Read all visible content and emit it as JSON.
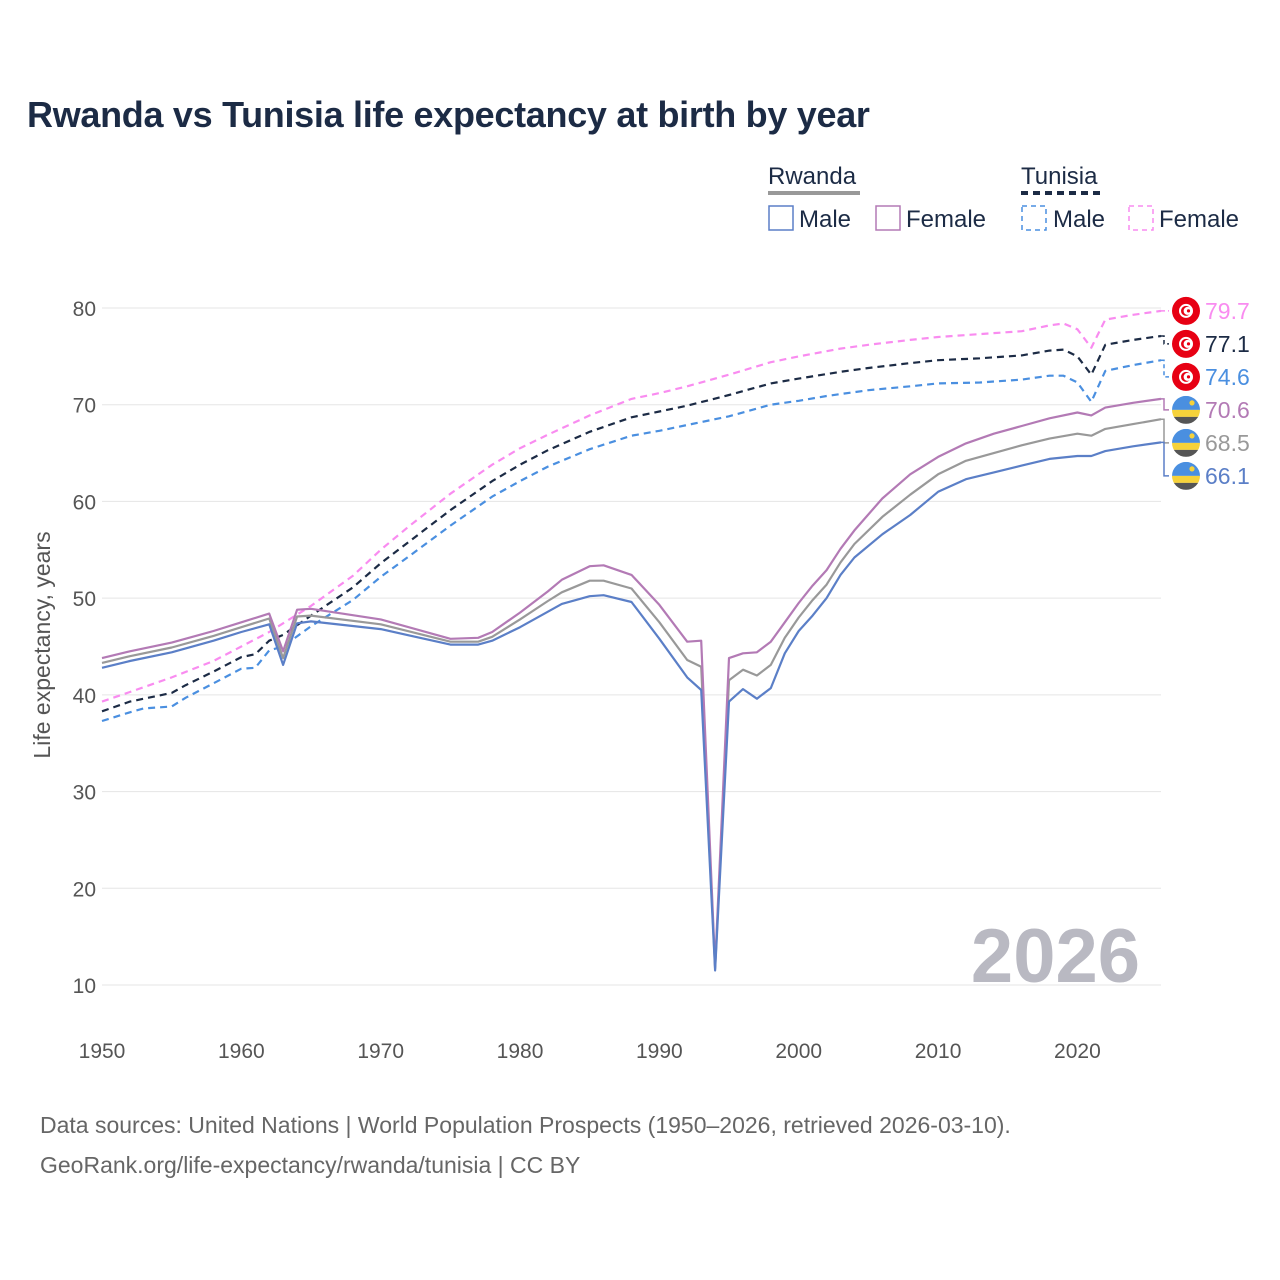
{
  "colors": {
    "rwanda_male": "#5b7fc7",
    "rwanda_female": "#b37ab5",
    "rwanda_total": "#999999",
    "tunisia_male": "#4a8fe0",
    "tunisia_female": "#f98cf0",
    "tunisia_total": "#1c2b45",
    "grid": "#e5e5e5",
    "year_watermark": "#b9b9c2"
  },
  "legend": {
    "groups": [
      {
        "name": "Rwanda",
        "male_label": "Male",
        "female_label": "Female"
      },
      {
        "name": "Tunisia",
        "male_label": "Male",
        "female_label": "Female"
      }
    ]
  },
  "year_watermark": "2026",
  "footer": {
    "line1": "Data sources: United Nations | World Population Prospects (1950–2026, retrieved 2026-03-10).",
    "line2": "GeoRank.org/life-expectancy/rwanda/tunisia | CC BY"
  },
  "chart_data": {
    "type": "line",
    "title": "Rwanda vs Tunisia life expectancy at birth by year",
    "xlabel": "",
    "ylabel": "Life expectancy, years",
    "xlim": [
      1950,
      2026
    ],
    "ylim": [
      10,
      80
    ],
    "x_ticks": [
      1950,
      1960,
      1970,
      1980,
      1990,
      2000,
      2010,
      2020
    ],
    "y_ticks": [
      10,
      20,
      30,
      40,
      50,
      60,
      70,
      80
    ],
    "grid": true,
    "series": [
      {
        "key": "rwanda_male",
        "name": "Rwanda Male",
        "country": "Rwanda",
        "dash": false,
        "end_label": "66.1",
        "flag": "rwanda",
        "points": [
          [
            1950,
            42.8
          ],
          [
            1952,
            43.5
          ],
          [
            1955,
            44.4
          ],
          [
            1958,
            45.6
          ],
          [
            1960,
            46.5
          ],
          [
            1962,
            47.3
          ],
          [
            1963,
            43.1
          ],
          [
            1964,
            47.4
          ],
          [
            1965,
            47.6
          ],
          [
            1970,
            46.8
          ],
          [
            1975,
            45.2
          ],
          [
            1977,
            45.2
          ],
          [
            1978,
            45.6
          ],
          [
            1980,
            47.0
          ],
          [
            1982,
            48.6
          ],
          [
            1983,
            49.4
          ],
          [
            1985,
            50.2
          ],
          [
            1986,
            50.3
          ],
          [
            1988,
            49.6
          ],
          [
            1990,
            45.8
          ],
          [
            1992,
            41.8
          ],
          [
            1993,
            40.5
          ],
          [
            1994,
            11.5
          ],
          [
            1995,
            39.3
          ],
          [
            1996,
            40.6
          ],
          [
            1997,
            39.6
          ],
          [
            1998,
            40.7
          ],
          [
            1999,
            44.3
          ],
          [
            2000,
            46.6
          ],
          [
            2001,
            48.2
          ],
          [
            2002,
            50.0
          ],
          [
            2003,
            52.4
          ],
          [
            2004,
            54.2
          ],
          [
            2006,
            56.6
          ],
          [
            2008,
            58.6
          ],
          [
            2010,
            61.0
          ],
          [
            2012,
            62.3
          ],
          [
            2014,
            63.0
          ],
          [
            2016,
            63.7
          ],
          [
            2018,
            64.4
          ],
          [
            2020,
            64.7
          ],
          [
            2021,
            64.7
          ],
          [
            2022,
            65.2
          ],
          [
            2024,
            65.7
          ],
          [
            2026,
            66.1
          ]
        ]
      },
      {
        "key": "rwanda_female",
        "name": "Rwanda Female",
        "country": "Rwanda",
        "dash": false,
        "end_label": "70.6",
        "flag": "rwanda",
        "points": [
          [
            1950,
            43.8
          ],
          [
            1952,
            44.5
          ],
          [
            1955,
            45.4
          ],
          [
            1958,
            46.6
          ],
          [
            1960,
            47.5
          ],
          [
            1962,
            48.4
          ],
          [
            1963,
            44.5
          ],
          [
            1964,
            48.8
          ],
          [
            1965,
            48.9
          ],
          [
            1970,
            47.8
          ],
          [
            1975,
            45.8
          ],
          [
            1977,
            45.9
          ],
          [
            1978,
            46.5
          ],
          [
            1980,
            48.5
          ],
          [
            1982,
            50.7
          ],
          [
            1983,
            51.9
          ],
          [
            1985,
            53.3
          ],
          [
            1986,
            53.4
          ],
          [
            1988,
            52.4
          ],
          [
            1990,
            49.3
          ],
          [
            1992,
            45.5
          ],
          [
            1993,
            45.6
          ],
          [
            1994,
            11.9
          ],
          [
            1995,
            43.8
          ],
          [
            1996,
            44.3
          ],
          [
            1997,
            44.4
          ],
          [
            1998,
            45.5
          ],
          [
            1999,
            47.5
          ],
          [
            2000,
            49.5
          ],
          [
            2001,
            51.3
          ],
          [
            2002,
            52.9
          ],
          [
            2003,
            55.1
          ],
          [
            2004,
            57.0
          ],
          [
            2006,
            60.3
          ],
          [
            2008,
            62.8
          ],
          [
            2010,
            64.6
          ],
          [
            2012,
            66.0
          ],
          [
            2014,
            67.0
          ],
          [
            2016,
            67.8
          ],
          [
            2018,
            68.6
          ],
          [
            2020,
            69.2
          ],
          [
            2021,
            68.9
          ],
          [
            2022,
            69.7
          ],
          [
            2024,
            70.2
          ],
          [
            2026,
            70.6
          ]
        ]
      },
      {
        "key": "rwanda_total",
        "name": "Rwanda",
        "country": "Rwanda",
        "dash": false,
        "end_label": "68.5",
        "flag": "rwanda",
        "points": [
          [
            1950,
            43.3
          ],
          [
            1952,
            44.0
          ],
          [
            1955,
            44.9
          ],
          [
            1958,
            46.1
          ],
          [
            1960,
            47.0
          ],
          [
            1962,
            47.9
          ],
          [
            1963,
            43.8
          ],
          [
            1964,
            48.1
          ],
          [
            1965,
            48.2
          ],
          [
            1970,
            47.3
          ],
          [
            1975,
            45.5
          ],
          [
            1977,
            45.5
          ],
          [
            1978,
            46.0
          ],
          [
            1980,
            47.8
          ],
          [
            1982,
            49.7
          ],
          [
            1983,
            50.6
          ],
          [
            1985,
            51.8
          ],
          [
            1986,
            51.8
          ],
          [
            1988,
            51.0
          ],
          [
            1990,
            47.5
          ],
          [
            1992,
            43.6
          ],
          [
            1993,
            42.9
          ],
          [
            1994,
            11.7
          ],
          [
            1995,
            41.5
          ],
          [
            1996,
            42.6
          ],
          [
            1997,
            42.0
          ],
          [
            1998,
            43.1
          ],
          [
            1999,
            45.9
          ],
          [
            2000,
            48.0
          ],
          [
            2001,
            49.8
          ],
          [
            2002,
            51.4
          ],
          [
            2003,
            53.7
          ],
          [
            2004,
            55.6
          ],
          [
            2006,
            58.4
          ],
          [
            2008,
            60.7
          ],
          [
            2010,
            62.8
          ],
          [
            2012,
            64.2
          ],
          [
            2014,
            65.0
          ],
          [
            2016,
            65.8
          ],
          [
            2018,
            66.5
          ],
          [
            2020,
            67.0
          ],
          [
            2021,
            66.8
          ],
          [
            2022,
            67.5
          ],
          [
            2024,
            68.0
          ],
          [
            2026,
            68.5
          ]
        ]
      },
      {
        "key": "tunisia_male",
        "name": "Tunisia Male",
        "country": "Tunisia",
        "dash": true,
        "end_label": "74.6",
        "flag": "tunisia",
        "points": [
          [
            1950,
            37.3
          ],
          [
            1952,
            38.2
          ],
          [
            1953,
            38.6
          ],
          [
            1955,
            38.8
          ],
          [
            1956,
            39.7
          ],
          [
            1958,
            41.2
          ],
          [
            1960,
            42.7
          ],
          [
            1961,
            42.8
          ],
          [
            1962,
            44.6
          ],
          [
            1963,
            45.0
          ],
          [
            1965,
            47.1
          ],
          [
            1968,
            49.8
          ],
          [
            1970,
            52.2
          ],
          [
            1972,
            54.3
          ],
          [
            1975,
            57.5
          ],
          [
            1978,
            60.5
          ],
          [
            1980,
            62.1
          ],
          [
            1982,
            63.6
          ],
          [
            1985,
            65.4
          ],
          [
            1988,
            66.8
          ],
          [
            1990,
            67.3
          ],
          [
            1992,
            67.9
          ],
          [
            1995,
            68.8
          ],
          [
            1998,
            70.0
          ],
          [
            2000,
            70.4
          ],
          [
            2002,
            70.9
          ],
          [
            2005,
            71.5
          ],
          [
            2008,
            71.9
          ],
          [
            2010,
            72.2
          ],
          [
            2013,
            72.3
          ],
          [
            2016,
            72.6
          ],
          [
            2018,
            73.0
          ],
          [
            2019,
            73.0
          ],
          [
            2020,
            72.3
          ],
          [
            2021,
            70.3
          ],
          [
            2022,
            73.5
          ],
          [
            2024,
            74.1
          ],
          [
            2026,
            74.6
          ]
        ]
      },
      {
        "key": "tunisia_female",
        "name": "Tunisia Female",
        "country": "Tunisia",
        "dash": true,
        "end_label": "79.7",
        "flag": "tunisia",
        "points": [
          [
            1950,
            39.3
          ],
          [
            1952,
            40.3
          ],
          [
            1955,
            41.8
          ],
          [
            1958,
            43.5
          ],
          [
            1960,
            45.0
          ],
          [
            1962,
            46.5
          ],
          [
            1963,
            47.4
          ],
          [
            1965,
            49.2
          ],
          [
            1968,
            52.3
          ],
          [
            1970,
            55.0
          ],
          [
            1972,
            57.4
          ],
          [
            1975,
            60.8
          ],
          [
            1978,
            63.8
          ],
          [
            1980,
            65.5
          ],
          [
            1982,
            66.9
          ],
          [
            1985,
            68.9
          ],
          [
            1988,
            70.6
          ],
          [
            1990,
            71.2
          ],
          [
            1992,
            71.9
          ],
          [
            1995,
            73.1
          ],
          [
            1998,
            74.4
          ],
          [
            2000,
            75.0
          ],
          [
            2003,
            75.8
          ],
          [
            2005,
            76.2
          ],
          [
            2008,
            76.7
          ],
          [
            2010,
            77.0
          ],
          [
            2013,
            77.3
          ],
          [
            2016,
            77.6
          ],
          [
            2018,
            78.2
          ],
          [
            2019,
            78.4
          ],
          [
            2020,
            77.8
          ],
          [
            2021,
            75.9
          ],
          [
            2022,
            78.8
          ],
          [
            2024,
            79.3
          ],
          [
            2026,
            79.7
          ]
        ]
      },
      {
        "key": "tunisia_total",
        "name": "Tunisia",
        "country": "Tunisia",
        "dash": true,
        "end_label": "77.1",
        "flag": "tunisia",
        "points": [
          [
            1950,
            38.3
          ],
          [
            1952,
            39.3
          ],
          [
            1955,
            40.2
          ],
          [
            1956,
            41.0
          ],
          [
            1958,
            42.4
          ],
          [
            1960,
            43.9
          ],
          [
            1961,
            44.2
          ],
          [
            1962,
            45.6
          ],
          [
            1963,
            46.2
          ],
          [
            1965,
            48.2
          ],
          [
            1968,
            51.1
          ],
          [
            1970,
            53.6
          ],
          [
            1972,
            55.8
          ],
          [
            1975,
            59.1
          ],
          [
            1978,
            62.1
          ],
          [
            1980,
            63.8
          ],
          [
            1982,
            65.3
          ],
          [
            1985,
            67.2
          ],
          [
            1988,
            68.7
          ],
          [
            1990,
            69.3
          ],
          [
            1992,
            69.9
          ],
          [
            1995,
            71.0
          ],
          [
            1998,
            72.2
          ],
          [
            2000,
            72.7
          ],
          [
            2003,
            73.4
          ],
          [
            2005,
            73.8
          ],
          [
            2008,
            74.3
          ],
          [
            2010,
            74.6
          ],
          [
            2013,
            74.8
          ],
          [
            2016,
            75.1
          ],
          [
            2018,
            75.6
          ],
          [
            2019,
            75.7
          ],
          [
            2020,
            75.0
          ],
          [
            2021,
            73.1
          ],
          [
            2022,
            76.2
          ],
          [
            2024,
            76.7
          ],
          [
            2026,
            77.1
          ]
        ]
      }
    ]
  }
}
